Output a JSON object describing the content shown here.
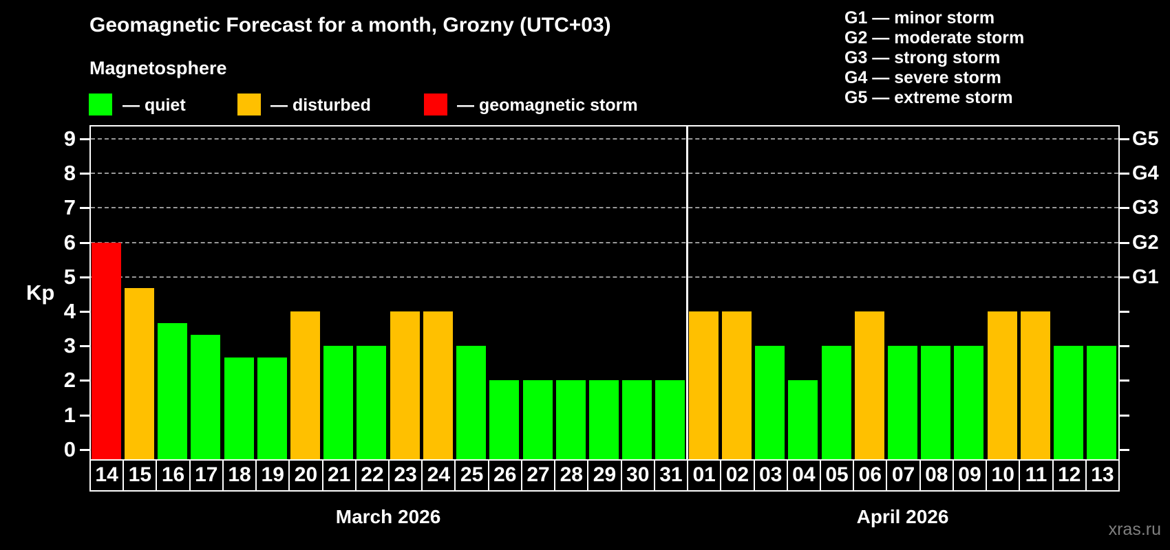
{
  "header": {
    "title": "Geomagnetic Forecast for a month, Grozny (UTC+03)",
    "subtitle": "Magnetosphere"
  },
  "legend": {
    "quiet_label": "— quiet",
    "disturbed_label": "— disturbed",
    "storm_label": "— geomagnetic storm"
  },
  "storm_scale_legend": [
    "G1 — minor storm",
    "G2 — moderate storm",
    "G3 — strong storm",
    "G4 — severe storm",
    "G5 — extreme storm"
  ],
  "colors": {
    "quiet": "#00ff00",
    "disturbed": "#ffc000",
    "storm": "#ff0000",
    "background": "#000000",
    "grid": "#999999",
    "axis": "#ffffff",
    "watermark": "#7f7f7f"
  },
  "watermark": "xras.ru",
  "chart_data": {
    "type": "bar",
    "title": "Geomagnetic Forecast for a month, Grozny (UTC+03)",
    "ylabel": "Kp",
    "ylim": [
      0,
      9
    ],
    "yticks": [
      0,
      1,
      2,
      3,
      4,
      5,
      6,
      7,
      8,
      9
    ],
    "grid_levels_kp": [
      5,
      6,
      7,
      8,
      9
    ],
    "right_axis_labels": [
      {
        "kp": 5,
        "label": "G1"
      },
      {
        "kp": 6,
        "label": "G2"
      },
      {
        "kp": 7,
        "label": "G3"
      },
      {
        "kp": 8,
        "label": "G4"
      },
      {
        "kp": 9,
        "label": "G5"
      }
    ],
    "legend_position": "top",
    "grid": "dashed horizontal at Kp 5-9 only",
    "months": [
      {
        "name": "March 2026",
        "days": [
          {
            "day": "14",
            "kp": 6.0,
            "level": "storm"
          },
          {
            "day": "15",
            "kp": 4.67,
            "level": "disturbed"
          },
          {
            "day": "16",
            "kp": 3.67,
            "level": "quiet"
          },
          {
            "day": "17",
            "kp": 3.33,
            "level": "quiet"
          },
          {
            "day": "18",
            "kp": 2.67,
            "level": "quiet"
          },
          {
            "day": "19",
            "kp": 2.67,
            "level": "quiet"
          },
          {
            "day": "20",
            "kp": 4.0,
            "level": "disturbed"
          },
          {
            "day": "21",
            "kp": 3.0,
            "level": "quiet"
          },
          {
            "day": "22",
            "kp": 3.0,
            "level": "quiet"
          },
          {
            "day": "23",
            "kp": 4.0,
            "level": "disturbed"
          },
          {
            "day": "24",
            "kp": 4.0,
            "level": "disturbed"
          },
          {
            "day": "25",
            "kp": 3.0,
            "level": "quiet"
          },
          {
            "day": "26",
            "kp": 2.0,
            "level": "quiet"
          },
          {
            "day": "27",
            "kp": 2.0,
            "level": "quiet"
          },
          {
            "day": "28",
            "kp": 2.0,
            "level": "quiet"
          },
          {
            "day": "29",
            "kp": 2.0,
            "level": "quiet"
          },
          {
            "day": "30",
            "kp": 2.0,
            "level": "quiet"
          },
          {
            "day": "31",
            "kp": 2.0,
            "level": "quiet"
          }
        ]
      },
      {
        "name": "April 2026",
        "days": [
          {
            "day": "01",
            "kp": 4.0,
            "level": "disturbed"
          },
          {
            "day": "02",
            "kp": 4.0,
            "level": "disturbed"
          },
          {
            "day": "03",
            "kp": 3.0,
            "level": "quiet"
          },
          {
            "day": "04",
            "kp": 2.0,
            "level": "quiet"
          },
          {
            "day": "05",
            "kp": 3.0,
            "level": "quiet"
          },
          {
            "day": "06",
            "kp": 4.0,
            "level": "disturbed"
          },
          {
            "day": "07",
            "kp": 3.0,
            "level": "quiet"
          },
          {
            "day": "08",
            "kp": 3.0,
            "level": "quiet"
          },
          {
            "day": "09",
            "kp": 3.0,
            "level": "quiet"
          },
          {
            "day": "10",
            "kp": 4.0,
            "level": "disturbed"
          },
          {
            "day": "11",
            "kp": 4.0,
            "level": "disturbed"
          },
          {
            "day": "12",
            "kp": 3.0,
            "level": "quiet"
          },
          {
            "day": "13",
            "kp": 3.0,
            "level": "quiet"
          }
        ]
      }
    ]
  }
}
